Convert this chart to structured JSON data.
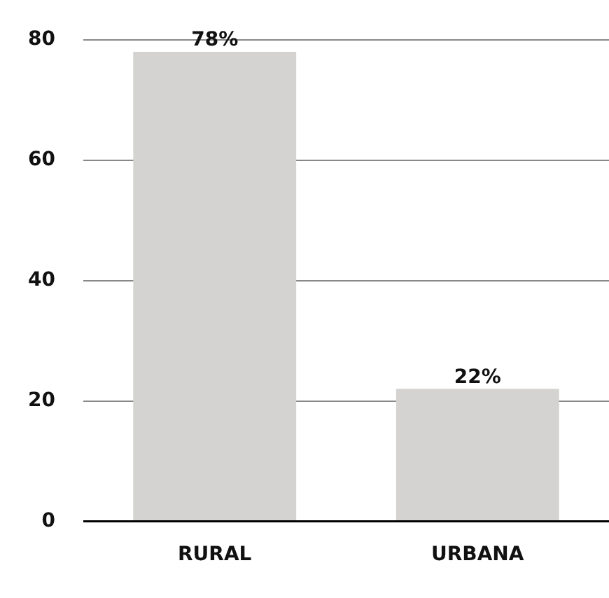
{
  "chart_data": {
    "type": "bar",
    "categories": [
      "RURAL",
      "URBANA"
    ],
    "values": [
      78,
      22
    ],
    "value_labels": [
      "78%",
      "22%"
    ],
    "color": "#d4d3d1",
    "ylim": [
      0,
      80
    ],
    "yticks": [
      0,
      20,
      40,
      60,
      80
    ],
    "grid": "y",
    "legend": false
  }
}
